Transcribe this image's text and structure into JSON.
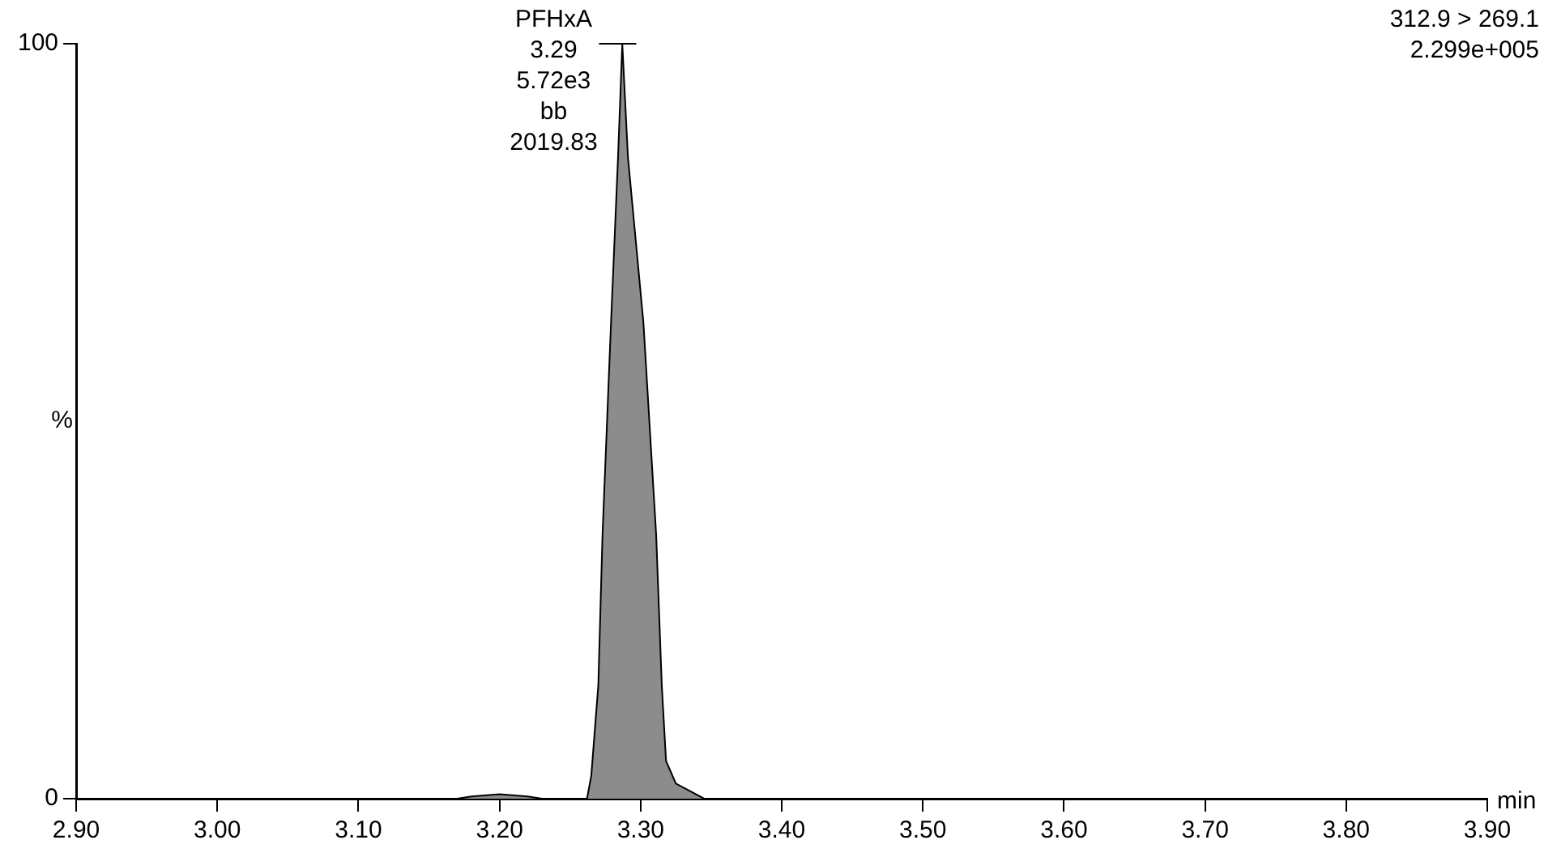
{
  "chart_data": {
    "type": "area",
    "xlabel": "min",
    "ylabel": "%",
    "series": [
      {
        "color": "#8c8c8c",
        "x": [
          2.9,
          3.17,
          3.18,
          3.2,
          3.22,
          3.23,
          3.262,
          3.265,
          3.27,
          3.273,
          3.279,
          3.284,
          3.287,
          3.291,
          3.302,
          3.311,
          3.315,
          3.318,
          3.325,
          3.335,
          3.345,
          3.9
        ],
        "values": [
          0,
          0,
          0.3,
          0.6,
          0.3,
          0,
          0,
          3,
          15,
          35,
          63,
          85,
          100,
          85,
          63,
          35,
          15,
          5,
          2,
          1,
          0,
          0
        ]
      }
    ],
    "xlim": [
      2.9,
      3.9
    ],
    "xticks": [
      {
        "value": 2.9,
        "label": "2.90"
      },
      {
        "value": 3.0,
        "label": "3.00"
      },
      {
        "value": 3.1,
        "label": "3.10"
      },
      {
        "value": 3.2,
        "label": "3.20"
      },
      {
        "value": 3.3,
        "label": "3.30"
      },
      {
        "value": 3.4,
        "label": "3.40"
      },
      {
        "value": 3.5,
        "label": "3.50"
      },
      {
        "value": 3.6,
        "label": "3.60"
      },
      {
        "value": 3.7,
        "label": "3.70"
      },
      {
        "value": 3.8,
        "label": "3.80"
      },
      {
        "value": 3.9,
        "label": "3.90"
      }
    ],
    "ylim": [
      0,
      100
    ],
    "yticks": [
      0,
      100
    ],
    "grid": false,
    "legend": false,
    "annotations": [
      {
        "text": "PFHxA\n3.29\n5.72e3\nbb\n2019.83",
        "x": 3.29,
        "y": 100
      },
      "312.9 > 269.1\n2.299e+005"
    ]
  }
}
